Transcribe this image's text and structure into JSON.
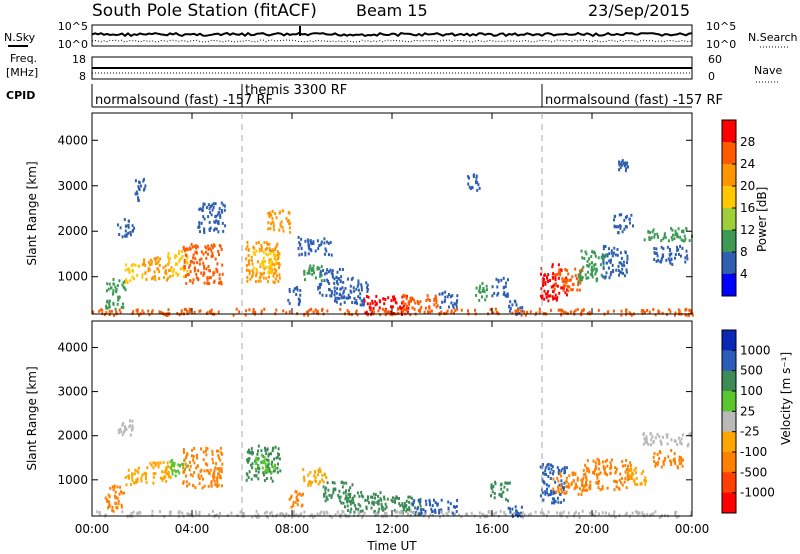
{
  "header": {
    "station": "South Pole Station (fitACF)",
    "beam": "Beam 15",
    "date": "23/Sep/2015"
  },
  "top_panels": {
    "nsky_label": "N.Sky",
    "nsky_ticks": [
      "10^5",
      "10^0"
    ],
    "nsearch_label": "N.Search",
    "nsearch_ticks": [
      "10^5",
      "10^0"
    ],
    "freq_label": "Freq.",
    "freq_unit": "[MHz]",
    "freq_ticks": [
      "18",
      "8"
    ],
    "nave_label": "Nave",
    "nave_ticks": [
      "60",
      "0"
    ],
    "cpid_label": "CPID",
    "cpid_segments": [
      {
        "label": "normalsound (fast) -157 RF",
        "start_hour": 0,
        "end_hour": 6
      },
      {
        "label": "themis 3300 RF",
        "start_hour": 6,
        "end_hour": 18
      },
      {
        "label": "normalsound (fast) -157 RF",
        "start_hour": 18,
        "end_hour": 24
      }
    ]
  },
  "colorbars": {
    "power": {
      "label": "Power [dB]",
      "ticks": [
        "28",
        "24",
        "20",
        "16",
        "12",
        "8",
        "4"
      ],
      "colors": [
        "#ff0000",
        "#ff5a00",
        "#ff9600",
        "#ffc800",
        "#9fcf3a",
        "#3d9a55",
        "#2f5fb0",
        "#0000ff"
      ]
    },
    "velocity": {
      "label": "Velocity [m s⁻¹]",
      "ticks": [
        "1000",
        "500",
        "100",
        "25",
        "-25",
        "-100",
        "-500",
        "-1000"
      ],
      "colors": [
        "#0a28b4",
        "#2a5db8",
        "#3c8a56",
        "#58c62c",
        "#b9b9b9",
        "#ffa500",
        "#ff7f00",
        "#ff4000",
        "#ff0000"
      ]
    }
  },
  "chart_data": [
    {
      "type": "heatmap",
      "name": "power",
      "xlabel": "",
      "ylabel": "Slant Range [km]",
      "xlim": [
        0,
        24
      ],
      "ylim": [
        180,
        4600
      ],
      "y_ticks": [
        1000,
        2000,
        3000,
        4000
      ],
      "x_ticks": [
        0,
        4,
        8,
        12,
        16,
        20,
        24
      ],
      "x_tick_labels": [
        "",
        "",
        "",
        "",
        "",
        "",
        ""
      ],
      "mode_change_hours": [
        6,
        18
      ],
      "regions": [
        {
          "t0": 0.5,
          "t1": 1.3,
          "r0": 300,
          "r1": 1000,
          "color": "#3d9a55"
        },
        {
          "t0": 1.3,
          "t1": 2.0,
          "r0": 900,
          "r1": 1300,
          "color": "#ffc800"
        },
        {
          "t0": 1.0,
          "t1": 1.7,
          "r0": 1900,
          "r1": 2300,
          "color": "#2f5fb0"
        },
        {
          "t0": 1.7,
          "t1": 2.1,
          "r0": 2700,
          "r1": 3200,
          "color": "#2f5fb0"
        },
        {
          "t0": 2.0,
          "t1": 3.2,
          "r0": 950,
          "r1": 1450,
          "color": "#ff9600"
        },
        {
          "t0": 3.0,
          "t1": 3.8,
          "r0": 1000,
          "r1": 1600,
          "color": "#ffc800"
        },
        {
          "t0": 3.6,
          "t1": 5.2,
          "r0": 850,
          "r1": 1750,
          "color": "#ff5a00"
        },
        {
          "t0": 4.2,
          "t1": 5.3,
          "r0": 2000,
          "r1": 2700,
          "color": "#2f5fb0"
        },
        {
          "t0": 6.1,
          "t1": 7.5,
          "r0": 900,
          "r1": 1800,
          "color": "#ff9600"
        },
        {
          "t0": 6.4,
          "t1": 7.4,
          "r0": 1100,
          "r1": 1600,
          "color": "#ffc800"
        },
        {
          "t0": 7.0,
          "t1": 7.9,
          "r0": 2000,
          "r1": 2500,
          "color": "#ff9600"
        },
        {
          "t0": 7.8,
          "t1": 8.3,
          "r0": 400,
          "r1": 800,
          "color": "#2f5fb0"
        },
        {
          "t0": 8.2,
          "t1": 9.6,
          "r0": 1500,
          "r1": 1900,
          "color": "#2f5fb0"
        },
        {
          "t0": 8.4,
          "t1": 9.2,
          "r0": 900,
          "r1": 1300,
          "color": "#3d9a55"
        },
        {
          "t0": 9.0,
          "t1": 10.0,
          "r0": 600,
          "r1": 1200,
          "color": "#2f5fb0"
        },
        {
          "t0": 9.6,
          "t1": 11.0,
          "r0": 400,
          "r1": 1000,
          "color": "#2f5fb0"
        },
        {
          "t0": 10.8,
          "t1": 12.8,
          "r0": 200,
          "r1": 600,
          "color": "#ff0000"
        },
        {
          "t0": 12.4,
          "t1": 13.8,
          "r0": 250,
          "r1": 650,
          "color": "#ff5a00"
        },
        {
          "t0": 13.8,
          "t1": 14.6,
          "r0": 350,
          "r1": 700,
          "color": "#2f5fb0"
        },
        {
          "t0": 15.0,
          "t1": 15.5,
          "r0": 2900,
          "r1": 3300,
          "color": "#2f5fb0"
        },
        {
          "t0": 15.3,
          "t1": 15.8,
          "r0": 500,
          "r1": 900,
          "color": "#3d9a55"
        },
        {
          "t0": 15.9,
          "t1": 16.6,
          "r0": 600,
          "r1": 1000,
          "color": "#2f5fb0"
        },
        {
          "t0": 16.6,
          "t1": 17.2,
          "r0": 200,
          "r1": 500,
          "color": "#2f5fb0"
        },
        {
          "t0": 17.9,
          "t1": 19.0,
          "r0": 500,
          "r1": 1300,
          "color": "#ff0000"
        },
        {
          "t0": 18.4,
          "t1": 19.6,
          "r0": 700,
          "r1": 1200,
          "color": "#ff5a00"
        },
        {
          "t0": 19.4,
          "t1": 20.6,
          "r0": 900,
          "r1": 1600,
          "color": "#3d9a55"
        },
        {
          "t0": 20.4,
          "t1": 21.4,
          "r0": 1000,
          "r1": 1700,
          "color": "#2f5fb0"
        },
        {
          "t0": 20.8,
          "t1": 21.6,
          "r0": 2000,
          "r1": 2400,
          "color": "#2f5fb0"
        },
        {
          "t0": 21.0,
          "t1": 21.4,
          "r0": 3300,
          "r1": 3600,
          "color": "#2f5fb0"
        },
        {
          "t0": 22.0,
          "t1": 24.0,
          "r0": 1800,
          "r1": 2100,
          "color": "#3d9a55"
        },
        {
          "t0": 22.4,
          "t1": 23.8,
          "r0": 1300,
          "r1": 1700,
          "color": "#2f5fb0"
        },
        {
          "t0": 0.0,
          "t1": 24.0,
          "r0": 180,
          "r1": 320,
          "color": "#ff5a00"
        }
      ]
    },
    {
      "type": "heatmap",
      "name": "velocity",
      "xlabel": "Time UT",
      "ylabel": "Slant Range [km]",
      "xlim": [
        0,
        24
      ],
      "ylim": [
        180,
        4600
      ],
      "y_ticks": [
        1000,
        2000,
        3000,
        4000
      ],
      "x_ticks": [
        0,
        4,
        8,
        12,
        16,
        20,
        24
      ],
      "x_tick_labels": [
        "00:00",
        "04:00",
        "08:00",
        "12:00",
        "16:00",
        "20:00",
        "00:00"
      ],
      "mode_change_hours": [
        6,
        18
      ],
      "regions": [
        {
          "t0": 0.5,
          "t1": 1.3,
          "r0": 300,
          "r1": 900,
          "color": "#ff7f00"
        },
        {
          "t0": 1.3,
          "t1": 2.1,
          "r0": 900,
          "r1": 1300,
          "color": "#ffa500"
        },
        {
          "t0": 1.0,
          "t1": 1.7,
          "r0": 2000,
          "r1": 2400,
          "color": "#b9b9b9"
        },
        {
          "t0": 2.0,
          "t1": 3.2,
          "r0": 950,
          "r1": 1450,
          "color": "#ffa500"
        },
        {
          "t0": 3.0,
          "t1": 3.8,
          "r0": 1100,
          "r1": 1500,
          "color": "#58c62c"
        },
        {
          "t0": 3.6,
          "t1": 5.2,
          "r0": 850,
          "r1": 1750,
          "color": "#ff7f00"
        },
        {
          "t0": 6.1,
          "t1": 7.5,
          "r0": 1000,
          "r1": 1800,
          "color": "#3c8a56"
        },
        {
          "t0": 6.5,
          "t1": 7.3,
          "r0": 1200,
          "r1": 1600,
          "color": "#58c62c"
        },
        {
          "t0": 7.8,
          "t1": 8.4,
          "r0": 400,
          "r1": 800,
          "color": "#ff7f00"
        },
        {
          "t0": 8.4,
          "t1": 9.4,
          "r0": 900,
          "r1": 1300,
          "color": "#ffa500"
        },
        {
          "t0": 9.2,
          "t1": 10.4,
          "r0": 500,
          "r1": 1000,
          "color": "#3c8a56"
        },
        {
          "t0": 10.0,
          "t1": 11.6,
          "r0": 300,
          "r1": 800,
          "color": "#3c8a56"
        },
        {
          "t0": 11.4,
          "t1": 13.2,
          "r0": 250,
          "r1": 650,
          "color": "#3c8a56"
        },
        {
          "t0": 12.8,
          "t1": 14.6,
          "r0": 250,
          "r1": 600,
          "color": "#2a5db8"
        },
        {
          "t0": 15.9,
          "t1": 16.7,
          "r0": 550,
          "r1": 1000,
          "color": "#3c8a56"
        },
        {
          "t0": 16.6,
          "t1": 17.2,
          "r0": 200,
          "r1": 450,
          "color": "#2a5db8"
        },
        {
          "t0": 17.9,
          "t1": 19.0,
          "r0": 500,
          "r1": 1400,
          "color": "#2a5db8"
        },
        {
          "t0": 18.4,
          "t1": 19.8,
          "r0": 700,
          "r1": 1200,
          "color": "#ff7f00"
        },
        {
          "t0": 19.6,
          "t1": 21.6,
          "r0": 800,
          "r1": 1500,
          "color": "#ff7f00"
        },
        {
          "t0": 21.4,
          "t1": 22.2,
          "r0": 900,
          "r1": 1300,
          "color": "#ffa500"
        },
        {
          "t0": 22.0,
          "t1": 24.0,
          "r0": 1800,
          "r1": 2100,
          "color": "#b9b9b9"
        },
        {
          "t0": 22.4,
          "t1": 23.6,
          "r0": 1300,
          "r1": 1700,
          "color": "#ff7f00"
        },
        {
          "t0": 0.0,
          "t1": 24.0,
          "r0": 180,
          "r1": 320,
          "color": "#b9b9b9"
        }
      ]
    }
  ]
}
